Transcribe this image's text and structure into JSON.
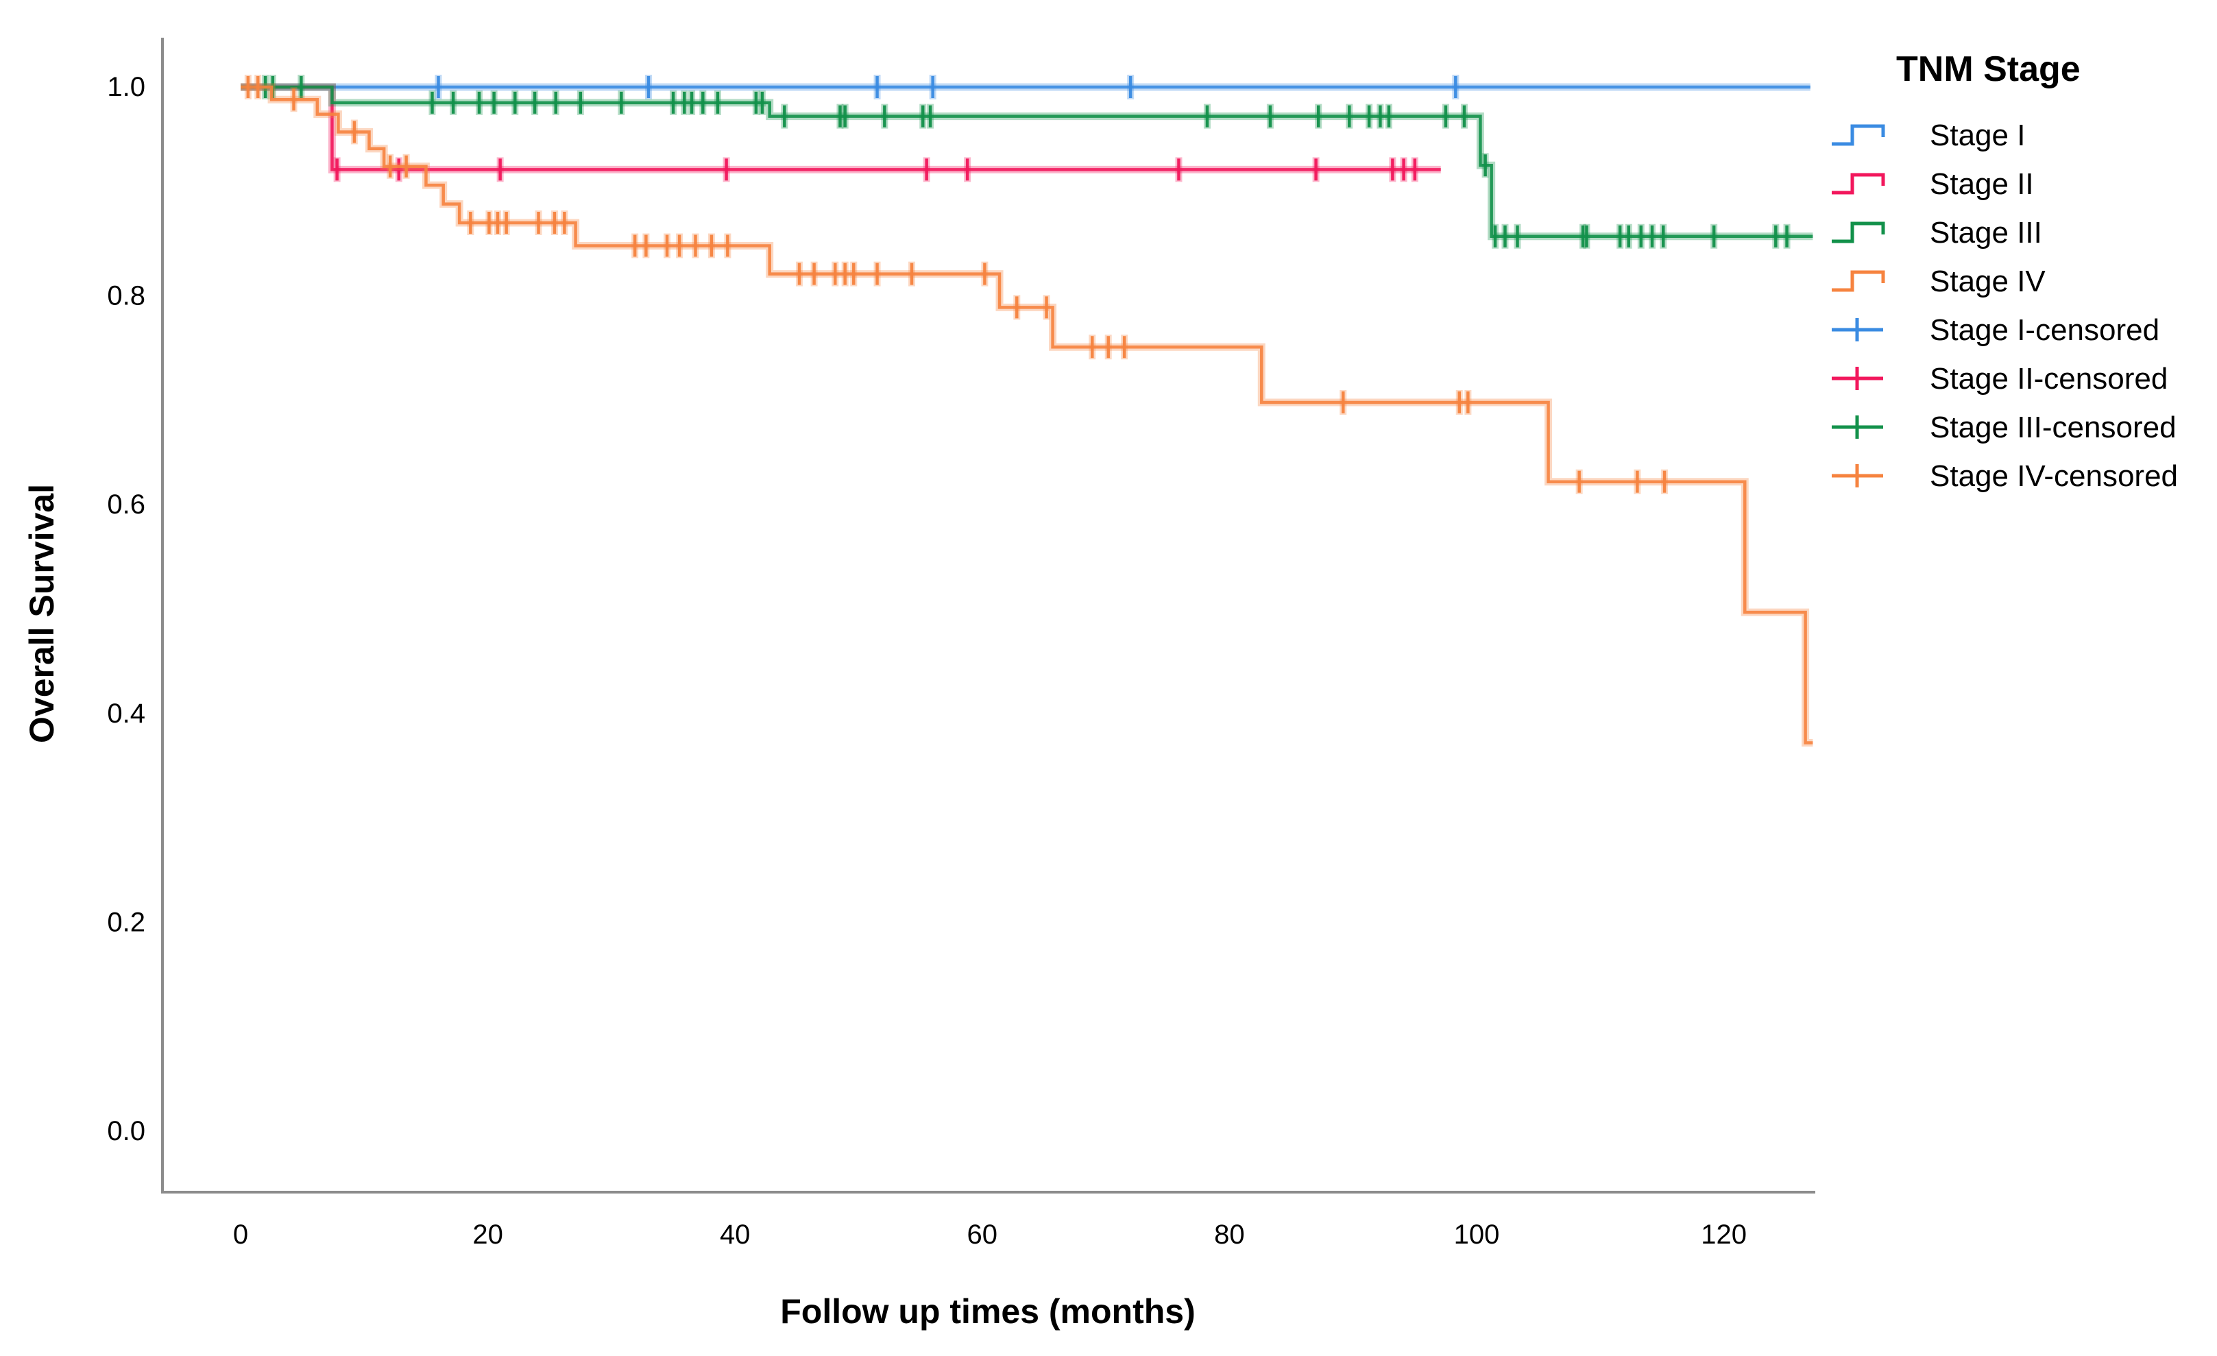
{
  "page": {
    "background": "#ffffff"
  },
  "axes": {
    "x_title": "Follow up times (months)",
    "y_title": "Overall Survival"
  },
  "legend": {
    "title": "TNM Stage",
    "items": [
      {
        "label": "Stage I",
        "swatch": "step",
        "series": "stage-1"
      },
      {
        "label": "Stage II",
        "swatch": "step",
        "series": "stage-2"
      },
      {
        "label": "Stage III",
        "swatch": "step",
        "series": "stage-3"
      },
      {
        "label": "Stage IV",
        "swatch": "step",
        "series": "stage-4"
      },
      {
        "label": "Stage I-censored",
        "swatch": "plus",
        "series": "stage-1"
      },
      {
        "label": "Stage II-censored",
        "swatch": "plus",
        "series": "stage-2"
      },
      {
        "label": "Stage III-censored",
        "swatch": "plus",
        "series": "stage-3"
      },
      {
        "label": "Stage IV-censored",
        "swatch": "plus",
        "series": "stage-4"
      }
    ]
  },
  "chart_data": {
    "type": "line",
    "subtype": "kaplan-meier-step",
    "title": "",
    "xlabel": "Follow up times (months)",
    "ylabel": "Overall Survival",
    "legend_title": "TNM Stage",
    "legend_position": "right",
    "grid": false,
    "xlim": [
      0,
      127.3
    ],
    "ylim": [
      0.0,
      1.0
    ],
    "x_ticks": [
      {
        "value": 0,
        "label": "0"
      },
      {
        "value": 20,
        "label": "20"
      },
      {
        "value": 40,
        "label": "40"
      },
      {
        "value": 60,
        "label": "60"
      },
      {
        "value": 80,
        "label": "80"
      },
      {
        "value": 100,
        "label": "100"
      },
      {
        "value": 120,
        "label": "120"
      }
    ],
    "y_ticks": [
      {
        "value": 1.0,
        "label": "1.0"
      },
      {
        "value": 0.8,
        "label": "0.8"
      },
      {
        "value": 0.6,
        "label": "0.6"
      },
      {
        "value": 0.4,
        "label": "0.4"
      },
      {
        "value": 0.2,
        "label": "0.2"
      },
      {
        "value": 0.0,
        "label": "0.0"
      }
    ],
    "series": [
      {
        "key": "stage-1",
        "name": "Stage I",
        "color": "#3a8be2",
        "steps": [
          [
            0,
            1.0
          ]
        ],
        "end": 127.0,
        "censors": [
          [
            16,
            1.0
          ],
          [
            33,
            1.0
          ],
          [
            51.5,
            1.0
          ],
          [
            56,
            1.0
          ],
          [
            72,
            1.0
          ],
          [
            98.3,
            1.0
          ]
        ]
      },
      {
        "key": "stage-2",
        "name": "Stage II",
        "color": "#f2175c",
        "steps": [
          [
            0,
            1.0
          ],
          [
            7.4,
            0.921
          ]
        ],
        "end": 97.1,
        "censors": [
          [
            7.8,
            0.921
          ],
          [
            12.8,
            0.921
          ],
          [
            21.0,
            0.921
          ],
          [
            39.3,
            0.921
          ],
          [
            55.5,
            0.921
          ],
          [
            58.8,
            0.921
          ],
          [
            75.9,
            0.921
          ],
          [
            87.0,
            0.921
          ],
          [
            93.2,
            0.921
          ],
          [
            94.1,
            0.921
          ],
          [
            95.0,
            0.921
          ]
        ]
      },
      {
        "key": "stage-3",
        "name": "Stage III",
        "color": "#12914a",
        "steps": [
          [
            0,
            1.0
          ],
          [
            7.4,
            0.985
          ],
          [
            42.8,
            0.972
          ],
          [
            100.3,
            0.925
          ],
          [
            101.2,
            0.857
          ]
        ],
        "end": 127.2,
        "censors": [
          [
            2.0,
            1.0
          ],
          [
            2.6,
            1.0
          ],
          [
            4.9,
            1.0
          ],
          [
            15.5,
            0.985
          ],
          [
            17.2,
            0.985
          ],
          [
            19.3,
            0.985
          ],
          [
            20.5,
            0.985
          ],
          [
            22.2,
            0.985
          ],
          [
            23.8,
            0.985
          ],
          [
            25.5,
            0.985
          ],
          [
            27.5,
            0.985
          ],
          [
            30.8,
            0.985
          ],
          [
            35.0,
            0.985
          ],
          [
            35.9,
            0.985
          ],
          [
            36.5,
            0.985
          ],
          [
            37.4,
            0.985
          ],
          [
            38.6,
            0.985
          ],
          [
            41.7,
            0.985
          ],
          [
            42.2,
            0.985
          ],
          [
            44.0,
            0.972
          ],
          [
            48.5,
            0.972
          ],
          [
            48.9,
            0.972
          ],
          [
            52.1,
            0.972
          ],
          [
            55.2,
            0.972
          ],
          [
            55.8,
            0.972
          ],
          [
            78.2,
            0.972
          ],
          [
            83.3,
            0.972
          ],
          [
            87.2,
            0.972
          ],
          [
            89.7,
            0.972
          ],
          [
            91.3,
            0.972
          ],
          [
            92.2,
            0.972
          ],
          [
            92.9,
            0.972
          ],
          [
            97.5,
            0.972
          ],
          [
            99.0,
            0.972
          ],
          [
            100.7,
            0.925
          ],
          [
            101.5,
            0.857
          ],
          [
            102.3,
            0.857
          ],
          [
            103.3,
            0.857
          ],
          [
            108.6,
            0.857
          ],
          [
            108.9,
            0.857
          ],
          [
            111.6,
            0.857
          ],
          [
            112.3,
            0.857
          ],
          [
            113.3,
            0.857
          ],
          [
            114.2,
            0.857
          ],
          [
            115.1,
            0.857
          ],
          [
            119.2,
            0.857
          ],
          [
            124.2,
            0.857
          ],
          [
            125.1,
            0.857
          ]
        ]
      },
      {
        "key": "stage-4",
        "name": "Stage IV",
        "color": "#f6833f",
        "steps": [
          [
            0,
            1.0
          ],
          [
            2.5,
            0.988
          ],
          [
            6.2,
            0.974
          ],
          [
            7.9,
            0.957
          ],
          [
            10.4,
            0.941
          ],
          [
            11.6,
            0.924
          ],
          [
            15.0,
            0.906
          ],
          [
            16.4,
            0.888
          ],
          [
            17.7,
            0.87
          ],
          [
            27.1,
            0.848
          ],
          [
            42.8,
            0.821
          ],
          [
            61.4,
            0.789
          ],
          [
            65.7,
            0.751
          ],
          [
            82.6,
            0.698
          ],
          [
            105.8,
            0.622
          ],
          [
            121.7,
            0.497
          ],
          [
            126.6,
            0.372
          ]
        ],
        "end": 127.2,
        "censors": [
          [
            0.6,
            1.0
          ],
          [
            1.4,
            1.0
          ],
          [
            4.3,
            0.988
          ],
          [
            9.2,
            0.957
          ],
          [
            12.1,
            0.924
          ],
          [
            13.4,
            0.924
          ],
          [
            18.6,
            0.87
          ],
          [
            20.1,
            0.87
          ],
          [
            20.8,
            0.87
          ],
          [
            21.5,
            0.87
          ],
          [
            24.1,
            0.87
          ],
          [
            25.4,
            0.87
          ],
          [
            26.2,
            0.87
          ],
          [
            31.9,
            0.848
          ],
          [
            32.8,
            0.848
          ],
          [
            34.5,
            0.848
          ],
          [
            35.5,
            0.848
          ],
          [
            36.8,
            0.848
          ],
          [
            38.1,
            0.848
          ],
          [
            39.4,
            0.848
          ],
          [
            45.2,
            0.821
          ],
          [
            46.4,
            0.821
          ],
          [
            48.1,
            0.821
          ],
          [
            48.9,
            0.821
          ],
          [
            49.6,
            0.821
          ],
          [
            51.5,
            0.821
          ],
          [
            54.3,
            0.821
          ],
          [
            60.2,
            0.821
          ],
          [
            62.8,
            0.789
          ],
          [
            65.2,
            0.789
          ],
          [
            68.9,
            0.751
          ],
          [
            70.2,
            0.751
          ],
          [
            71.5,
            0.751
          ],
          [
            89.2,
            0.698
          ],
          [
            98.6,
            0.698
          ],
          [
            99.3,
            0.698
          ],
          [
            108.3,
            0.622
          ],
          [
            113.0,
            0.622
          ],
          [
            115.2,
            0.622
          ]
        ]
      }
    ]
  }
}
